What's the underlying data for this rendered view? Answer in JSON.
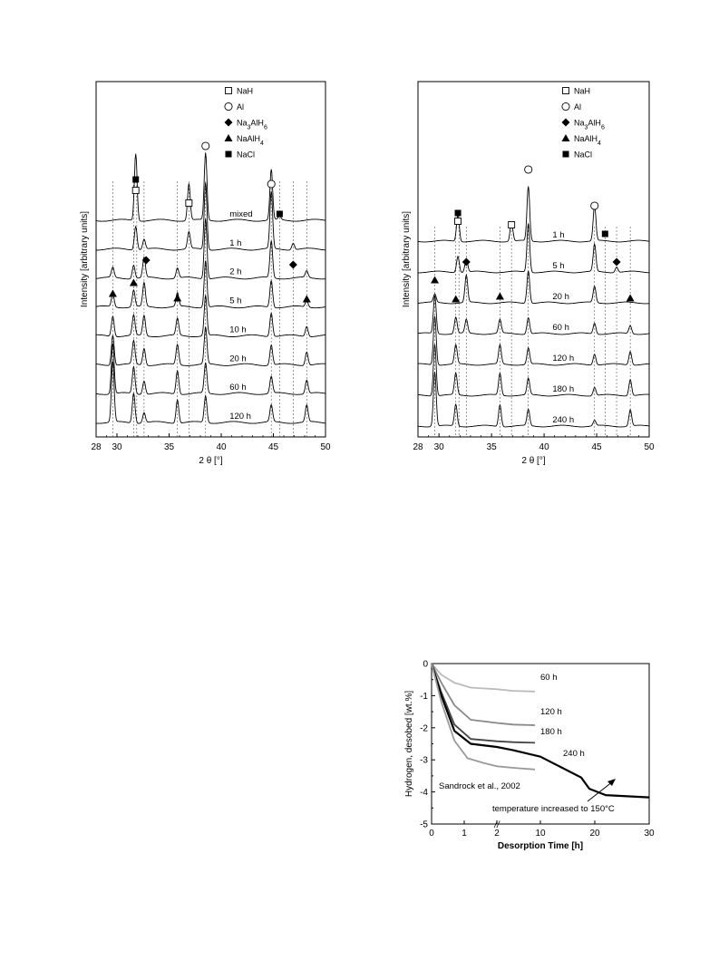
{
  "chart_data": [
    {
      "id": "xrd-left",
      "type": "line",
      "xlabel": "2 θ [°]",
      "ylabel": "Intensity [arbitrary units]",
      "xlim": [
        28,
        50
      ],
      "x_ticks": [
        28,
        30,
        35,
        40,
        45,
        50
      ],
      "legend": [
        {
          "marker": "open-square",
          "label": "NaH"
        },
        {
          "marker": "open-circle",
          "label": "Al"
        },
        {
          "marker": "diamond",
          "label": "Na3AlH6"
        },
        {
          "marker": "triangle",
          "label": "NaAlH4"
        },
        {
          "marker": "filled-square",
          "label": "NaCl"
        }
      ],
      "series": [
        {
          "name": "mixed",
          "peaks": [
            [
              31.8,
              1.0
            ],
            [
              36.9,
              0.55
            ],
            [
              38.5,
              1.0
            ],
            [
              44.8,
              0.75
            ],
            [
              45.6,
              0.05
            ]
          ]
        },
        {
          "name": "1 h",
          "peaks": [
            [
              31.8,
              0.35
            ],
            [
              32.6,
              0.15
            ],
            [
              36.9,
              0.25
            ],
            [
              38.5,
              1.0
            ],
            [
              44.8,
              0.85
            ],
            [
              46.9,
              0.1
            ]
          ]
        },
        {
          "name": "2 h",
          "peaks": [
            [
              29.6,
              0.15
            ],
            [
              31.6,
              0.2
            ],
            [
              32.6,
              0.3
            ],
            [
              35.8,
              0.15
            ],
            [
              38.5,
              0.9
            ],
            [
              44.8,
              0.55
            ],
            [
              48.2,
              0.1
            ]
          ]
        },
        {
          "name": "5 h",
          "peaks": [
            [
              29.6,
              0.2
            ],
            [
              31.6,
              0.25
            ],
            [
              32.6,
              0.35
            ],
            [
              35.8,
              0.2
            ],
            [
              38.5,
              0.7
            ],
            [
              44.8,
              0.4
            ],
            [
              48.2,
              0.1
            ]
          ]
        },
        {
          "name": "10 h",
          "peaks": [
            [
              29.6,
              0.3
            ],
            [
              31.6,
              0.3
            ],
            [
              32.6,
              0.3
            ],
            [
              35.8,
              0.25
            ],
            [
              38.5,
              0.6
            ],
            [
              44.8,
              0.35
            ],
            [
              48.2,
              0.15
            ]
          ]
        },
        {
          "name": "20 h",
          "peaks": [
            [
              29.6,
              0.45
            ],
            [
              31.6,
              0.35
            ],
            [
              32.6,
              0.25
            ],
            [
              35.8,
              0.3
            ],
            [
              38.5,
              0.55
            ],
            [
              44.8,
              0.3
            ],
            [
              48.2,
              0.2
            ]
          ]
        },
        {
          "name": "60 h",
          "peaks": [
            [
              29.6,
              0.75
            ],
            [
              31.6,
              0.4
            ],
            [
              32.6,
              0.2
            ],
            [
              35.8,
              0.35
            ],
            [
              38.5,
              0.45
            ],
            [
              44.8,
              0.25
            ],
            [
              48.2,
              0.2
            ]
          ]
        },
        {
          "name": "120 h",
          "peaks": [
            [
              29.6,
              0.9
            ],
            [
              31.6,
              0.45
            ],
            [
              32.6,
              0.15
            ],
            [
              35.8,
              0.35
            ],
            [
              38.5,
              0.4
            ],
            [
              44.8,
              0.25
            ],
            [
              48.2,
              0.25
            ]
          ]
        }
      ],
      "reference_lines_2theta": [
        29.6,
        31.6,
        31.9,
        32.6,
        35.8,
        36.9,
        38.5,
        44.8,
        45.6,
        46.9,
        48.2
      ]
    },
    {
      "id": "xrd-right",
      "type": "line",
      "xlabel": "2 θ [°]",
      "ylabel": "Intensity [arbitrary units]",
      "xlim": [
        28,
        50
      ],
      "x_ticks": [
        28,
        30,
        35,
        40,
        45,
        50
      ],
      "legend": [
        {
          "marker": "open-square",
          "label": "NaH"
        },
        {
          "marker": "open-circle",
          "label": "Al"
        },
        {
          "marker": "diamond",
          "label": "Na3AlH6"
        },
        {
          "marker": "triangle",
          "label": "NaAlH4"
        },
        {
          "marker": "filled-square",
          "label": "NaCl"
        }
      ],
      "series": [
        {
          "name": "1 h",
          "peaks": [
            [
              31.8,
              0.5
            ],
            [
              36.9,
              0.35
            ],
            [
              38.5,
              1.0
            ],
            [
              44.8,
              0.65
            ]
          ]
        },
        {
          "name": "5 h",
          "peaks": [
            [
              31.8,
              0.3
            ],
            [
              32.6,
              0.25
            ],
            [
              38.5,
              0.9
            ],
            [
              44.8,
              0.5
            ],
            [
              46.9,
              0.1
            ]
          ]
        },
        {
          "name": "20 h",
          "peaks": [
            [
              29.6,
              0.15
            ],
            [
              32.6,
              0.5
            ],
            [
              38.5,
              0.6
            ],
            [
              44.8,
              0.3
            ]
          ]
        },
        {
          "name": "60 h",
          "peaks": [
            [
              29.6,
              0.7
            ],
            [
              31.6,
              0.3
            ],
            [
              32.6,
              0.25
            ],
            [
              35.8,
              0.25
            ],
            [
              38.5,
              0.3
            ],
            [
              44.8,
              0.2
            ],
            [
              48.2,
              0.15
            ]
          ]
        },
        {
          "name": "120 h",
          "peaks": [
            [
              29.6,
              0.9
            ],
            [
              31.6,
              0.35
            ],
            [
              35.8,
              0.35
            ],
            [
              38.5,
              0.3
            ],
            [
              44.8,
              0.2
            ],
            [
              48.2,
              0.25
            ]
          ]
        },
        {
          "name": "180 h",
          "peaks": [
            [
              29.6,
              0.95
            ],
            [
              31.6,
              0.4
            ],
            [
              35.8,
              0.4
            ],
            [
              38.5,
              0.3
            ],
            [
              44.8,
              0.15
            ],
            [
              48.2,
              0.3
            ]
          ]
        },
        {
          "name": "240 h",
          "peaks": [
            [
              29.6,
              1.0
            ],
            [
              31.6,
              0.4
            ],
            [
              35.8,
              0.4
            ],
            [
              38.5,
              0.3
            ],
            [
              44.8,
              0.1
            ],
            [
              48.2,
              0.3
            ]
          ]
        }
      ],
      "reference_lines_2theta": [
        29.6,
        31.6,
        31.9,
        32.6,
        35.8,
        36.9,
        38.5,
        44.8,
        45.8,
        46.9,
        48.2
      ]
    },
    {
      "id": "desorption",
      "type": "line",
      "xlabel": "Desorption Time [h]",
      "ylabel": "Hydrogen, desobed [wt.%]",
      "ylim": [
        -5,
        0
      ],
      "y_ticks": [
        "0",
        "-1",
        "-2",
        "-3",
        "-4",
        "-5"
      ],
      "x_ticks": [
        "0",
        "1",
        "2",
        "10",
        "20",
        "30"
      ],
      "x_break": "//",
      "annotation": "temperature increased to 150°C",
      "series": [
        {
          "name": "60 h",
          "color": "#bbbbbb",
          "points": [
            [
              0,
              0
            ],
            [
              0.3,
              -0.35
            ],
            [
              0.7,
              -0.6
            ],
            [
              1.2,
              -0.75
            ],
            [
              2,
              -0.8
            ],
            [
              5,
              -0.85
            ],
            [
              10,
              -0.87
            ]
          ]
        },
        {
          "name": "120 h",
          "color": "#888888",
          "points": [
            [
              0,
              0
            ],
            [
              0.3,
              -0.6
            ],
            [
              0.7,
              -1.3
            ],
            [
              1.2,
              -1.75
            ],
            [
              2,
              -1.85
            ],
            [
              5,
              -1.9
            ],
            [
              10,
              -1.92
            ]
          ]
        },
        {
          "name": "180 h",
          "color": "#444444",
          "points": [
            [
              0,
              0
            ],
            [
              0.3,
              -0.9
            ],
            [
              0.7,
              -1.9
            ],
            [
              1.2,
              -2.35
            ],
            [
              2,
              -2.42
            ],
            [
              5,
              -2.45
            ],
            [
              10,
              -2.47
            ]
          ]
        },
        {
          "name": "240 h",
          "color": "#000000",
          "points": [
            [
              0,
              0
            ],
            [
              0.3,
              -1.0
            ],
            [
              0.7,
              -2.1
            ],
            [
              1.2,
              -2.5
            ],
            [
              2,
              -2.6
            ],
            [
              5,
              -2.7
            ],
            [
              10,
              -2.9
            ],
            [
              17.5,
              -3.55
            ],
            [
              19,
              -3.9
            ],
            [
              22,
              -4.1
            ],
            [
              30,
              -4.17
            ]
          ]
        },
        {
          "name": "Sandrock et al., 2002",
          "color": "#999999",
          "points": [
            [
              0,
              0
            ],
            [
              0.3,
              -1.2
            ],
            [
              0.7,
              -2.4
            ],
            [
              1.1,
              -2.95
            ],
            [
              1.6,
              -3.1
            ],
            [
              2,
              -3.2
            ],
            [
              5,
              -3.25
            ],
            [
              10,
              -3.3
            ]
          ]
        }
      ]
    }
  ]
}
